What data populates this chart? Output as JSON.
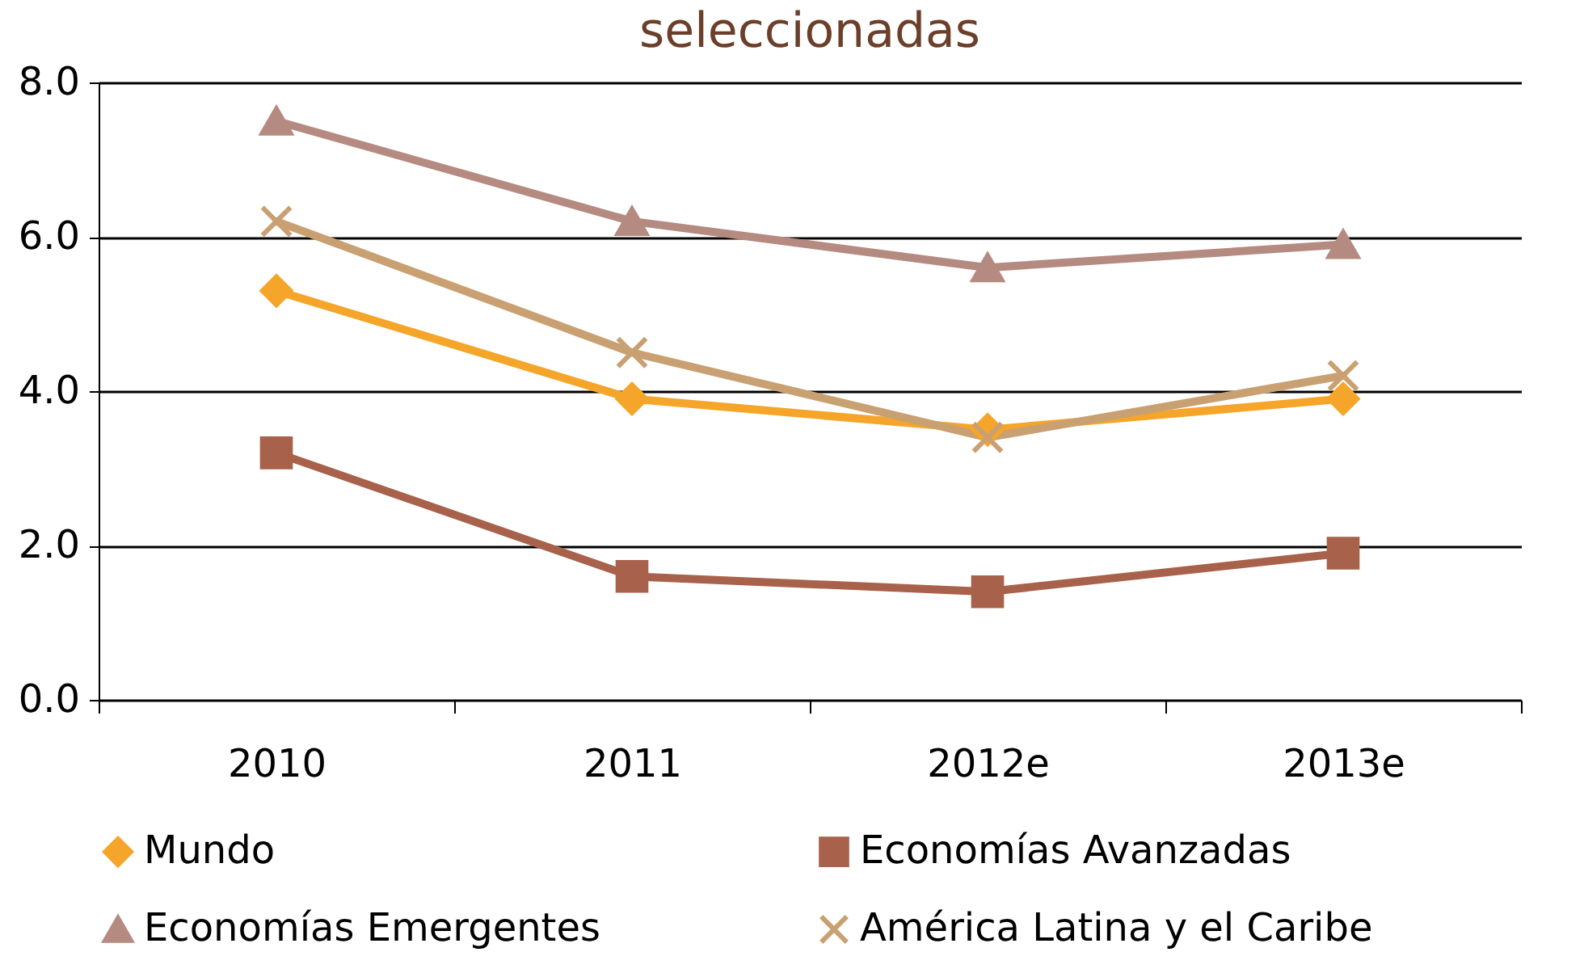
{
  "chart_data": {
    "type": "line",
    "title": "seleccionadas",
    "categories": [
      "2010",
      "2011",
      "2012e",
      "2013e"
    ],
    "series": [
      {
        "name": "Mundo",
        "color": "#f4a52a",
        "marker": "diamond",
        "values": [
          5.3,
          3.9,
          3.5,
          3.9
        ]
      },
      {
        "name": "Economías Avanzadas",
        "color": "#a8614a",
        "marker": "square",
        "values": [
          3.2,
          1.6,
          1.4,
          1.9
        ]
      },
      {
        "name": "Economías Emergentes",
        "color": "#b58a80",
        "marker": "triangle",
        "values": [
          7.5,
          6.2,
          5.6,
          5.9
        ]
      },
      {
        "name": "América Latina y el Caribe",
        "color": "#c9a071",
        "marker": "cross",
        "values": [
          6.2,
          4.5,
          3.4,
          4.2
        ]
      }
    ],
    "ylim": [
      0,
      8
    ],
    "yticks": [
      {
        "value": 0,
        "label": "0.0"
      },
      {
        "value": 2,
        "label": "2.0"
      },
      {
        "value": 4,
        "label": "4.0"
      },
      {
        "value": 6,
        "label": "6.0"
      },
      {
        "value": 8,
        "label": "8.0"
      }
    ],
    "grid": "y",
    "legend": "bottom",
    "line_style": "solid"
  }
}
